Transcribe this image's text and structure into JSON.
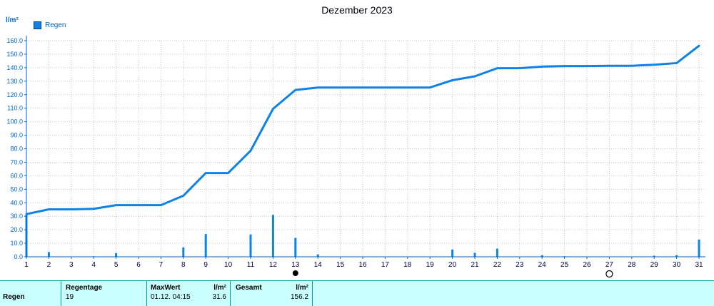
{
  "header": {
    "title": "Dezember 2023"
  },
  "legend": {
    "label": "Regen"
  },
  "colors": {
    "series": "#0d82e8",
    "axis_line": "#0066cc",
    "axis_text": "#0066cc",
    "x_text": "#000040",
    "grid": "#c6c6c6",
    "title_text": "#000010",
    "footer_bg": "#c9ffff",
    "footer_border": "#00a0a0"
  },
  "chart_data": {
    "type": "line",
    "title": "Dezember 2023",
    "ylabel": "l/m²",
    "xlabel": "",
    "x": [
      1,
      2,
      3,
      4,
      5,
      6,
      7,
      8,
      9,
      10,
      11,
      12,
      13,
      14,
      15,
      16,
      17,
      18,
      19,
      20,
      21,
      22,
      23,
      24,
      25,
      26,
      27,
      28,
      29,
      30,
      31
    ],
    "xticks": [
      "1",
      "2",
      "3",
      "4",
      "5",
      "6",
      "7",
      "8",
      "9",
      "10",
      "11",
      "12",
      "13",
      "14",
      "15",
      "16",
      "17",
      "18",
      "19",
      "20",
      "21",
      "22",
      "23",
      "24",
      "25",
      "26",
      "27",
      "28",
      "29",
      "30",
      "31"
    ],
    "ylim": [
      0,
      160
    ],
    "ytick_step": 10,
    "yticks": [
      "0.0",
      "10.0",
      "20.0",
      "30.0",
      "40.0",
      "50.0",
      "60.0",
      "70.0",
      "80.0",
      "90.0",
      "100.0",
      "110.0",
      "120.0",
      "130.0",
      "140.0",
      "150.0",
      "160.0"
    ],
    "grid": "dotted",
    "legend_position": "top-left",
    "series": [
      {
        "name": "Regen Summe (l/m²)",
        "type": "line",
        "values": [
          31.6,
          35.1,
          35.1,
          35.5,
          38.2,
          38.2,
          38.2,
          45.2,
          62.0,
          62.0,
          78.5,
          109.5,
          123.5,
          125.3,
          125.3,
          125.3,
          125.3,
          125.3,
          125.3,
          130.7,
          133.6,
          139.6,
          139.6,
          140.8,
          141.2,
          141.2,
          141.4,
          141.4,
          142.2,
          143.4,
          156.2
        ]
      },
      {
        "name": "Regen Tageswerte (l/m²)",
        "type": "bar",
        "values": [
          31.6,
          3.5,
          0,
          0.4,
          2.7,
          0,
          0,
          7.0,
          16.8,
          0,
          16.5,
          31.0,
          14.0,
          1.8,
          0,
          0,
          0,
          0,
          0,
          5.4,
          2.9,
          6.0,
          0,
          1.2,
          0.4,
          0,
          0.2,
          0,
          0.8,
          1.2,
          12.8
        ]
      }
    ],
    "moon_markers": [
      {
        "x": 13,
        "symbol": "new-moon"
      },
      {
        "x": 27,
        "symbol": "full-moon"
      }
    ]
  },
  "footer": {
    "row_label": "Regen",
    "cells": [
      {
        "header": "Regentage",
        "value": "19"
      },
      {
        "header": "MaxWert",
        "value": "01.12. 04:15"
      },
      {
        "header": "l/m²",
        "value": "31.6"
      },
      {
        "header": "Gesamt",
        "value": ""
      },
      {
        "header": "l/m²",
        "value": "156.2"
      }
    ]
  }
}
